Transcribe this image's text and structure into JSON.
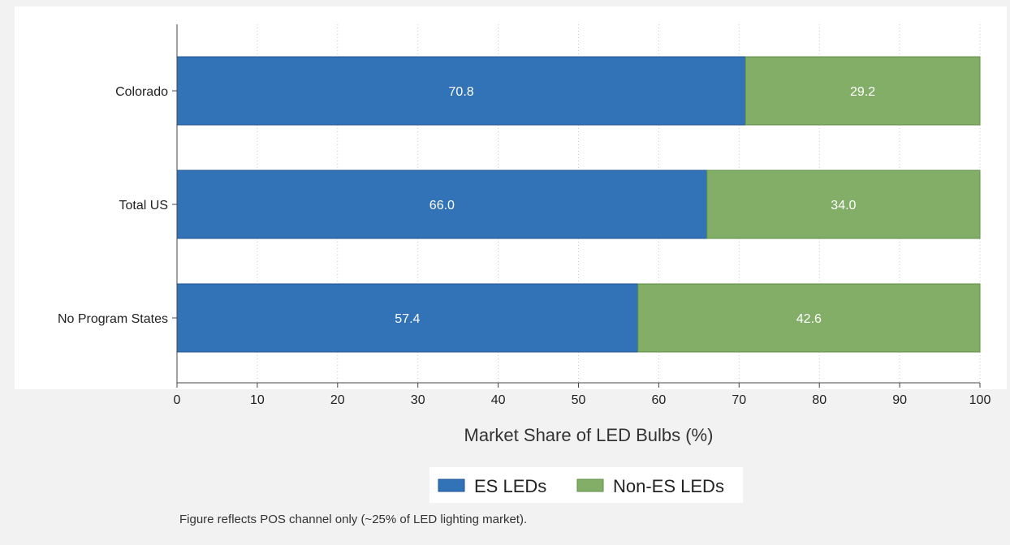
{
  "colors": {
    "es": "#3273b8",
    "es_stroke": "#1f5596",
    "non_es": "#82ae67",
    "non_es_stroke": "#5f8f47"
  },
  "chart_data": {
    "type": "bar",
    "orientation": "horizontal",
    "stacked": true,
    "categories": [
      "Colorado",
      "Total US",
      "No Program States"
    ],
    "series": [
      {
        "name": "ES LEDs",
        "values": [
          70.8,
          66.0,
          57.4
        ],
        "labels": [
          "70.8",
          "66.0",
          "57.4"
        ],
        "color": "#3273b8"
      },
      {
        "name": "Non-ES LEDs",
        "values": [
          29.2,
          34.0,
          42.6
        ],
        "labels": [
          "29.2",
          "34.0",
          "42.6"
        ],
        "color": "#82ae67"
      }
    ],
    "xlabel": "Market Share of LED Bulbs (%)",
    "xlim": [
      0,
      100
    ],
    "xticks": [
      0,
      10,
      20,
      30,
      40,
      50,
      60,
      70,
      80,
      90,
      100
    ],
    "grid": "vertical dotted",
    "legend_position": "bottom"
  },
  "note": "Figure reflects POS channel only (~25% of LED lighting market)."
}
